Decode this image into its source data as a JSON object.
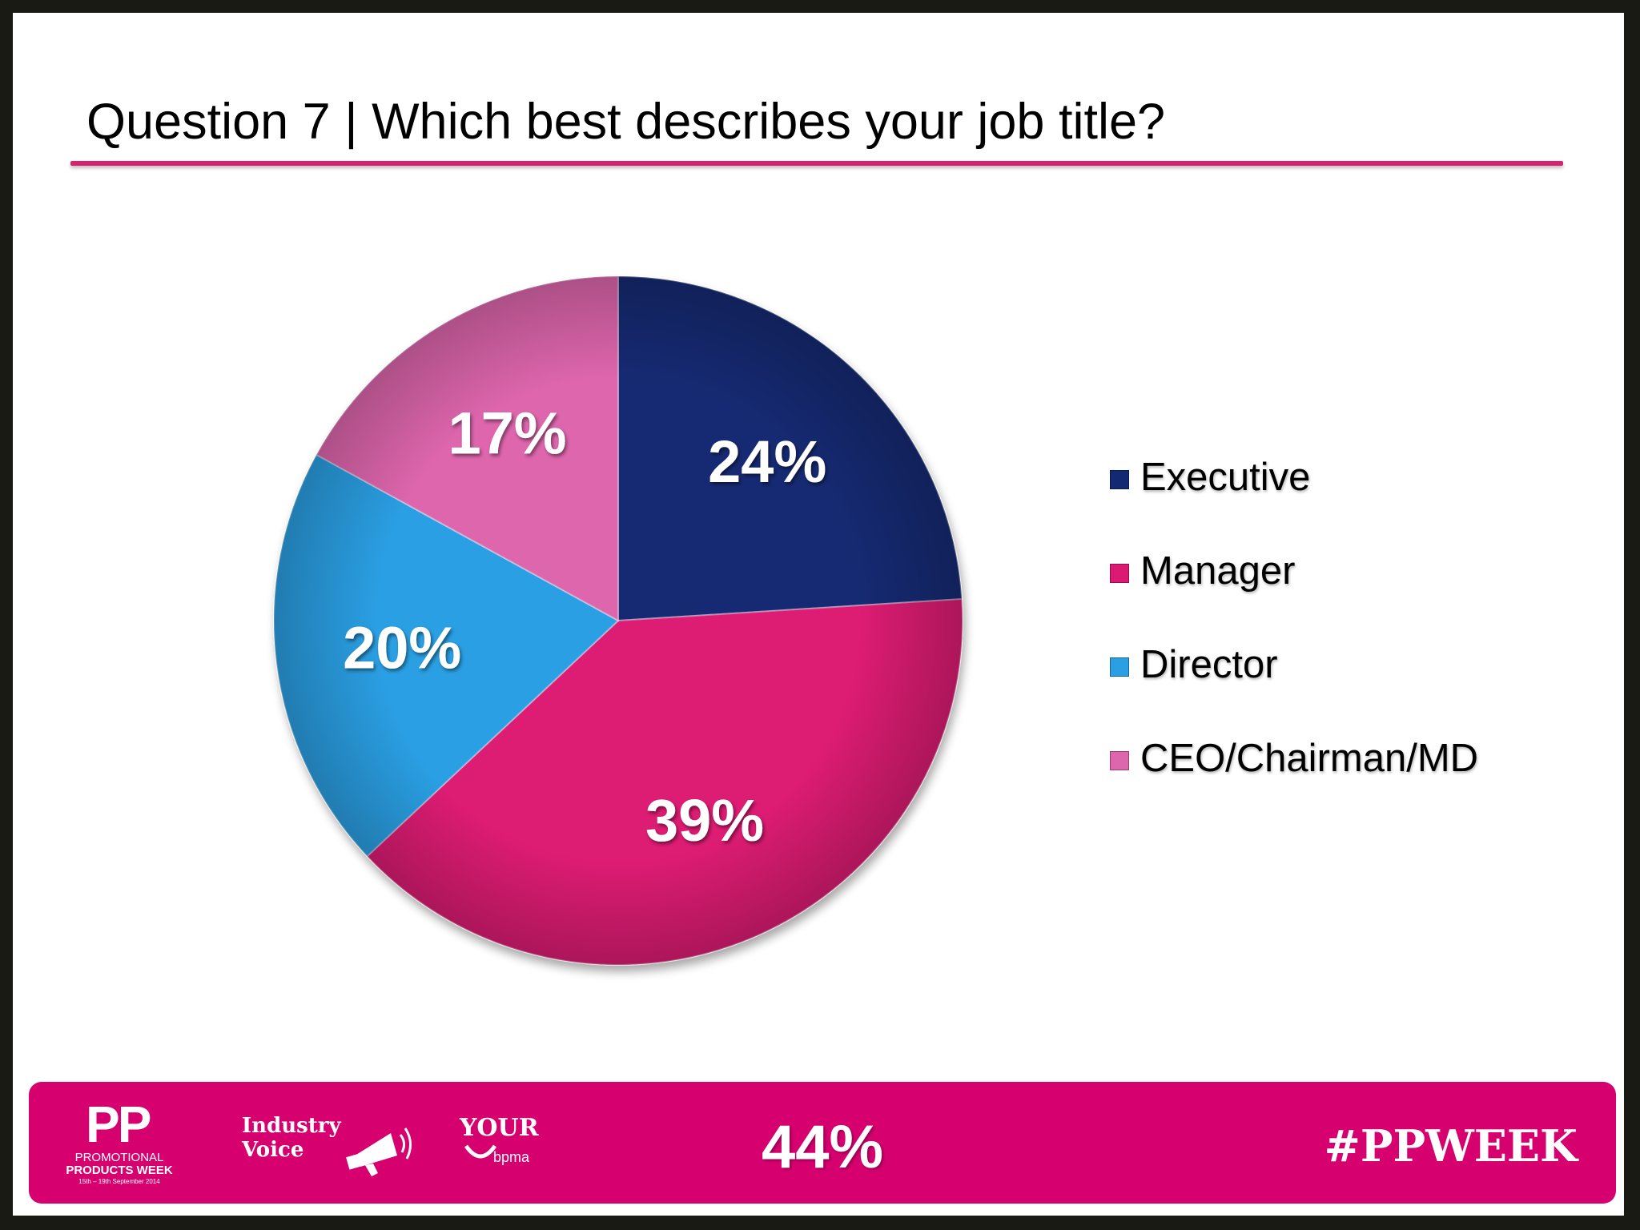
{
  "slide": {
    "title": "Question 7 | Which best describes your job title?",
    "accent_color": "#d6226f"
  },
  "chart_data": {
    "type": "pie",
    "title": "",
    "categories": [
      "Executive",
      "Manager",
      "Director",
      "CEO/Chairman/MD"
    ],
    "values": [
      24,
      39,
      20,
      17
    ],
    "labels": [
      "24%",
      "39%",
      "20%",
      "17%"
    ],
    "colors": [
      "#132a73",
      "#dd1a73",
      "#2a9fe3",
      "#de66ad"
    ],
    "start_angle_deg": 0,
    "direction": "clockwise",
    "legend_position": "right"
  },
  "footer": {
    "background": "#d6006f",
    "percent": "44%",
    "hashtag": "#PPWEEK",
    "logos": {
      "pp": {
        "mark": "PP",
        "line1": "PROMOTIONAL",
        "line2": "PRODUCTS WEEK",
        "line3": "15th – 19th September 2014"
      },
      "industry_voice": {
        "word1": "Industry",
        "word2": "Voice",
        "icon": "megaphone-icon"
      },
      "your_bpma": {
        "word1": "YOUR",
        "word2": "bpma"
      }
    }
  }
}
